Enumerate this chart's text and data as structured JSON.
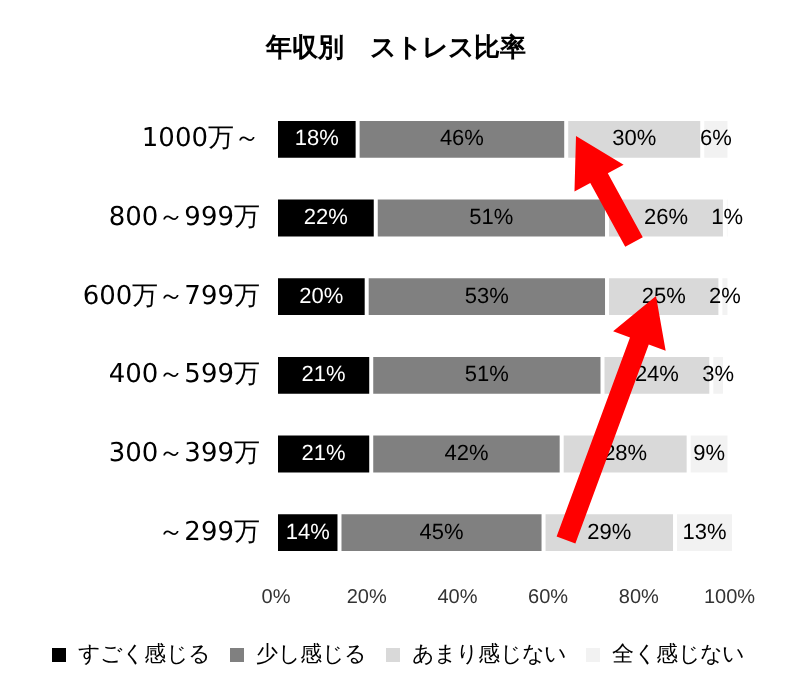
{
  "chart_data": {
    "type": "bar",
    "title": "年収別　ストレス比率",
    "orientation": "horizontal",
    "stacked": true,
    "categories": [
      "1000万～",
      "800～999万",
      "600万～799万",
      "400～599万",
      "300～399万",
      "～299万"
    ],
    "series": [
      {
        "name": "すごく感じる",
        "color": "#000000",
        "values": [
          18,
          22,
          20,
          21,
          21,
          14
        ],
        "value_labels": [
          "18%",
          "22%",
          "20%",
          "21%",
          "21%",
          "14%"
        ]
      },
      {
        "name": "少し感じる",
        "color": "#808080",
        "values": [
          46,
          51,
          53,
          51,
          42,
          45
        ],
        "value_labels": [
          "46%",
          "51%",
          "53%",
          "51%",
          "42%",
          "45%"
        ]
      },
      {
        "name": "あまり感じない",
        "color": "#d9d9d9",
        "values": [
          30,
          26,
          25,
          24,
          28,
          29
        ],
        "value_labels": [
          "30%",
          "26%",
          "25%",
          "24%",
          "28%",
          "29%"
        ]
      },
      {
        "name": "全く感じない",
        "color": "#f2f2f2",
        "values": [
          6,
          1,
          2,
          3,
          9,
          13
        ],
        "value_labels": [
          "6%",
          "1%",
          "2%",
          "3%",
          "9%",
          "13%"
        ]
      }
    ],
    "xlim": [
      0,
      101
    ],
    "xticks": [
      {
        "value": 0,
        "label": "0%"
      },
      {
        "value": 20,
        "label": "20%"
      },
      {
        "value": 40,
        "label": "40%"
      },
      {
        "value": 60,
        "label": "60%"
      },
      {
        "value": 80,
        "label": "80%"
      },
      {
        "value": 100,
        "label": "100%"
      }
    ],
    "grid": false,
    "legend": "bottom"
  }
}
